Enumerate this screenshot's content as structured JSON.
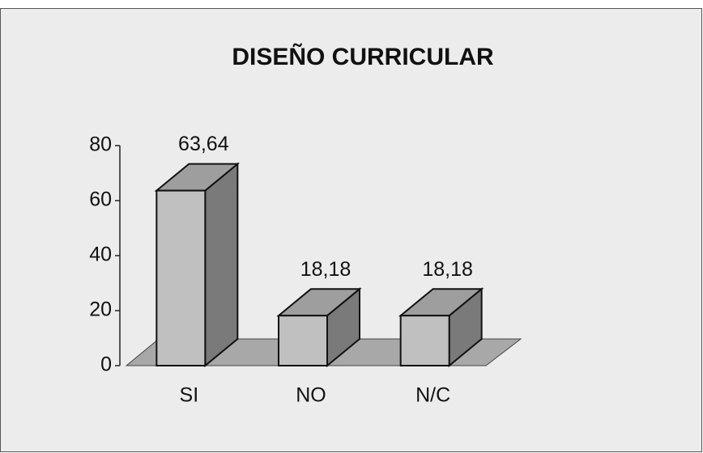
{
  "chart_data": {
    "type": "bar3d",
    "title": "DISEÑO CURRICULAR",
    "categories": [
      "SI",
      "NO",
      "N/C"
    ],
    "values": [
      63.64,
      18.18,
      18.18
    ],
    "value_labels": [
      "63,64",
      "18,18",
      "18,18"
    ],
    "color": "#c0c0c0",
    "ylim": [
      0,
      80
    ],
    "yticks": [
      0,
      20,
      40,
      60,
      80
    ],
    "grid": false
  }
}
